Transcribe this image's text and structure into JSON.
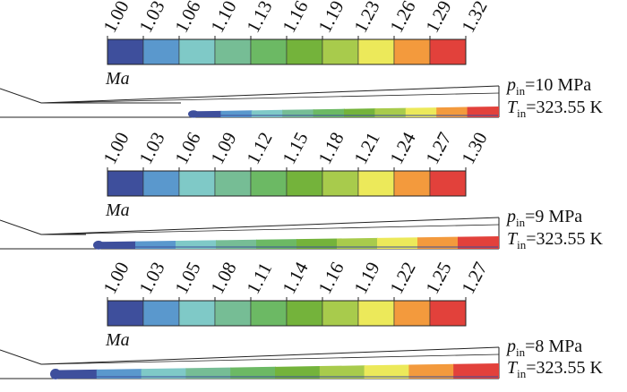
{
  "colors": [
    "#3e4f9c",
    "#5a98cd",
    "#7fc9c7",
    "#76bd95",
    "#6cb964",
    "#74b33b",
    "#a8cb4c",
    "#ece95a",
    "#f39a3d",
    "#e2413b"
  ],
  "panels": [
    {
      "ticks": [
        "1.00",
        "1.03",
        "1.06",
        "1.10",
        "1.13",
        "1.16",
        "1.19",
        "1.23",
        "1.26",
        "1.29",
        "1.32"
      ],
      "legend_label": "Ma",
      "pressure": {
        "symbol": "p",
        "subscript": "in",
        "value": "=10 MPa"
      },
      "temperature": {
        "symbol": "T",
        "subscript": "in",
        "value": "=323.55 K"
      }
    },
    {
      "ticks": [
        "1.00",
        "1.03",
        "1.06",
        "1.09",
        "1.12",
        "1.15",
        "1.18",
        "1.21",
        "1.24",
        "1.27",
        "1.30"
      ],
      "legend_label": "Ma",
      "pressure": {
        "symbol": "p",
        "subscript": "in",
        "value": "=9 MPa"
      },
      "temperature": {
        "symbol": "T",
        "subscript": "in",
        "value": "=323.55 K"
      }
    },
    {
      "ticks": [
        "1.00",
        "1.03",
        "1.05",
        "1.08",
        "1.11",
        "1.14",
        "1.16",
        "1.19",
        "1.22",
        "1.25",
        "1.27"
      ],
      "legend_label": "Ma",
      "pressure": {
        "symbol": "p",
        "subscript": "in",
        "value": "=8 MPa"
      },
      "temperature": {
        "symbol": "T",
        "subscript": "in",
        "value": "=323.55 K"
      }
    }
  ]
}
